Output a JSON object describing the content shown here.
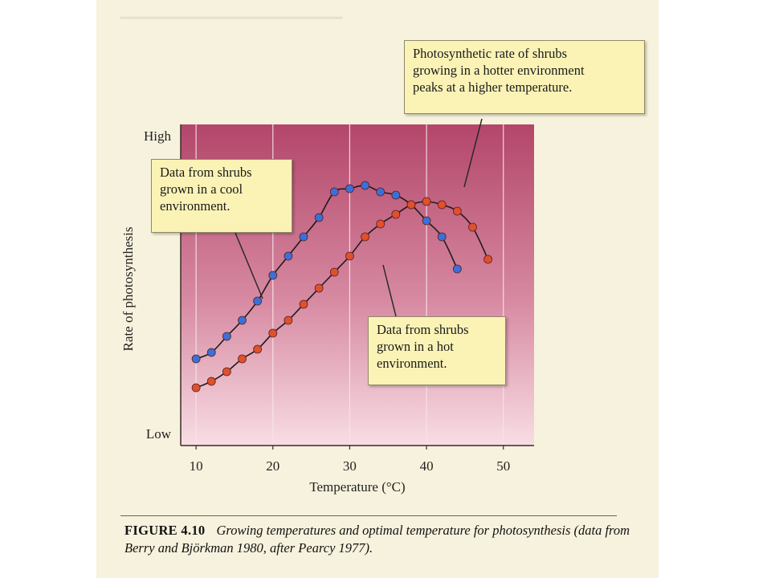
{
  "chart_data": {
    "type": "scatter",
    "xlabel": "Temperature (°C)",
    "ylabel": "Rate of photosynthesis",
    "xlim": [
      8,
      54
    ],
    "ylim": [
      "Low",
      "High"
    ],
    "x_ticks": [
      10,
      20,
      30,
      40,
      50
    ],
    "y_tick_labels": [
      "Low",
      "High"
    ],
    "grid": "vertical",
    "series": [
      {
        "color": "#3a70d8",
        "points": [
          {
            "x": 10,
            "y": 0.27
          },
          {
            "x": 12,
            "y": 0.29
          },
          {
            "x": 14,
            "y": 0.34
          },
          {
            "x": 16,
            "y": 0.39
          },
          {
            "x": 18,
            "y": 0.45
          },
          {
            "x": 20,
            "y": 0.53
          },
          {
            "x": 22,
            "y": 0.59
          },
          {
            "x": 24,
            "y": 0.65
          },
          {
            "x": 26,
            "y": 0.71
          },
          {
            "x": 28,
            "y": 0.79
          },
          {
            "x": 30,
            "y": 0.8
          },
          {
            "x": 32,
            "y": 0.81
          },
          {
            "x": 34,
            "y": 0.79
          },
          {
            "x": 36,
            "y": 0.78
          },
          {
            "x": 38,
            "y": 0.75
          },
          {
            "x": 40,
            "y": 0.7
          },
          {
            "x": 42,
            "y": 0.65
          },
          {
            "x": 44,
            "y": 0.55
          }
        ]
      },
      {
        "color": "#e0502c",
        "points": [
          {
            "x": 10,
            "y": 0.18
          },
          {
            "x": 12,
            "y": 0.2
          },
          {
            "x": 14,
            "y": 0.23
          },
          {
            "x": 16,
            "y": 0.27
          },
          {
            "x": 18,
            "y": 0.3
          },
          {
            "x": 20,
            "y": 0.35
          },
          {
            "x": 22,
            "y": 0.39
          },
          {
            "x": 24,
            "y": 0.44
          },
          {
            "x": 26,
            "y": 0.49
          },
          {
            "x": 28,
            "y": 0.54
          },
          {
            "x": 30,
            "y": 0.59
          },
          {
            "x": 32,
            "y": 0.65
          },
          {
            "x": 34,
            "y": 0.69
          },
          {
            "x": 36,
            "y": 0.72
          },
          {
            "x": 38,
            "y": 0.75
          },
          {
            "x": 40,
            "y": 0.76
          },
          {
            "x": 42,
            "y": 0.75
          },
          {
            "x": 44,
            "y": 0.73
          },
          {
            "x": 46,
            "y": 0.68
          },
          {
            "x": 48,
            "y": 0.58
          }
        ]
      }
    ],
    "annotations": [
      {
        "lines": [
          "Photosynthetic rate of shrubs",
          "growing in a hotter environment",
          "peaks at a higher temperature."
        ]
      },
      {
        "lines": [
          "Data from shrubs",
          "grown in a cool",
          "environment."
        ]
      },
      {
        "lines": [
          "Data from shrubs",
          "grown in a hot",
          "environment."
        ]
      }
    ]
  },
  "caption": {
    "label": "FIGURE 4.10",
    "text": "Growing temperatures and optimal temperature for photosynthesis (data from Berry and Björkman 1980, after Pearcy 1977)."
  },
  "colors": {
    "page": "#f7f2dd",
    "plot_top": "#b3466a",
    "plot_bottom": "#f8dde4",
    "callout": "#fbf3b6"
  }
}
